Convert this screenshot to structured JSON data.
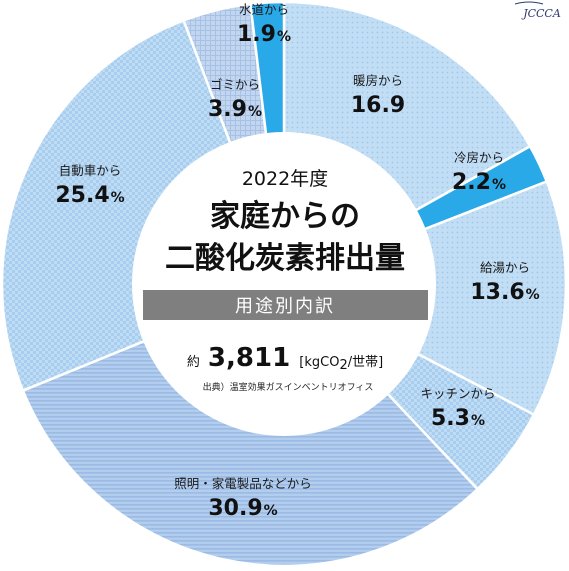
{
  "chart_data": {
    "type": "pie",
    "title_year": "2022年度",
    "title_line1": "家庭からの",
    "title_line2": "二酸化炭素排出量",
    "subtitle": "用途別内訳",
    "total_prefix": "約",
    "total_value": "3,811",
    "total_unit": "[kgCO",
    "total_unit_sub": "2",
    "total_unit_end": "/世帯]",
    "source": "出典）温室効果ガスインベントリオフィス",
    "slices": [
      {
        "label": "暖房から",
        "value": 16.9,
        "display": "16.9",
        "suffix": "",
        "color": "#c2def5"
      },
      {
        "label": "冷房から",
        "value": 2.2,
        "display": "2.2",
        "suffix": "%",
        "color": "#2aa9e8"
      },
      {
        "label": "給湯から",
        "value": 13.6,
        "display": "13.6",
        "suffix": "%",
        "color": "#c2def5"
      },
      {
        "label": "キッチンから",
        "value": 5.3,
        "display": "5.3",
        "suffix": "%",
        "color": "#c2def5"
      },
      {
        "label": "照明・家電製品などから",
        "value": 30.9,
        "display": "30.9",
        "suffix": "%",
        "color": "#aac6ea"
      },
      {
        "label": "自動車から",
        "value": 25.4,
        "display": "25.4",
        "suffix": "%",
        "color": "#b6d8f4"
      },
      {
        "label": "ゴミから",
        "value": 3.9,
        "display": "3.9",
        "suffix": "%",
        "color": "#b9cfed"
      },
      {
        "label": "水道から",
        "value": 1.9,
        "display": "1.9",
        "suffix": "%",
        "color": "#2aa9e8"
      }
    ]
  },
  "logo_text": "JCCCA"
}
